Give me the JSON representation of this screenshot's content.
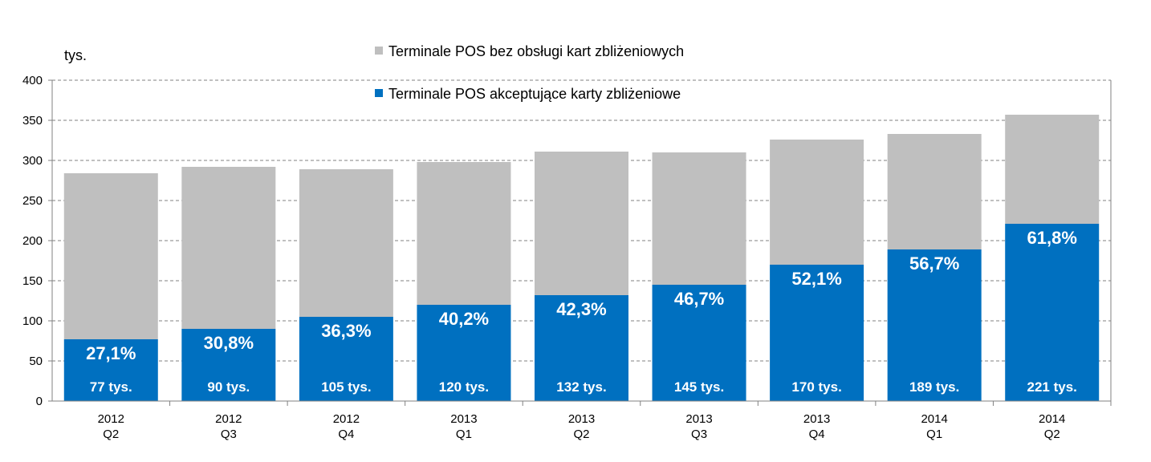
{
  "chart_data": {
    "type": "bar",
    "stacked": true,
    "unit_label": "tys.",
    "categories": [
      [
        "2012",
        "Q2"
      ],
      [
        "2012",
        "Q3"
      ],
      [
        "2012",
        "Q4"
      ],
      [
        "2013",
        "Q1"
      ],
      [
        "2013",
        "Q2"
      ],
      [
        "2013",
        "Q3"
      ],
      [
        "2013",
        "Q4"
      ],
      [
        "2014",
        "Q1"
      ],
      [
        "2014",
        "Q2"
      ]
    ],
    "series": [
      {
        "name": "Terminale POS akceptujące karty zbliżeniowe",
        "color": "#0070C0",
        "values": [
          77,
          90,
          105,
          120,
          132,
          145,
          170,
          189,
          221
        ],
        "value_labels": [
          "77 tys.",
          "90 tys.",
          "105 tys.",
          "120 tys.",
          "132 tys.",
          "145 tys.",
          "170 tys.",
          "189 tys.",
          "221 tys."
        ],
        "share_labels": [
          "27,1%",
          "30,8%",
          "36,3%",
          "40,2%",
          "42,3%",
          "46,7%",
          "52,1%",
          "56,7%",
          "61,8%"
        ]
      },
      {
        "name": "Terminale POS bez obsługi kart zbliżeniowych",
        "color": "#BFBFBF",
        "values": [
          207,
          202,
          184,
          178,
          179,
          165,
          156,
          144,
          136
        ]
      }
    ],
    "ylim": [
      0,
      400
    ],
    "yticks": [
      "0",
      "50",
      "100",
      "150",
      "200",
      "250",
      "300",
      "350",
      "400"
    ],
    "grid": true,
    "legend_position": "top-center"
  }
}
